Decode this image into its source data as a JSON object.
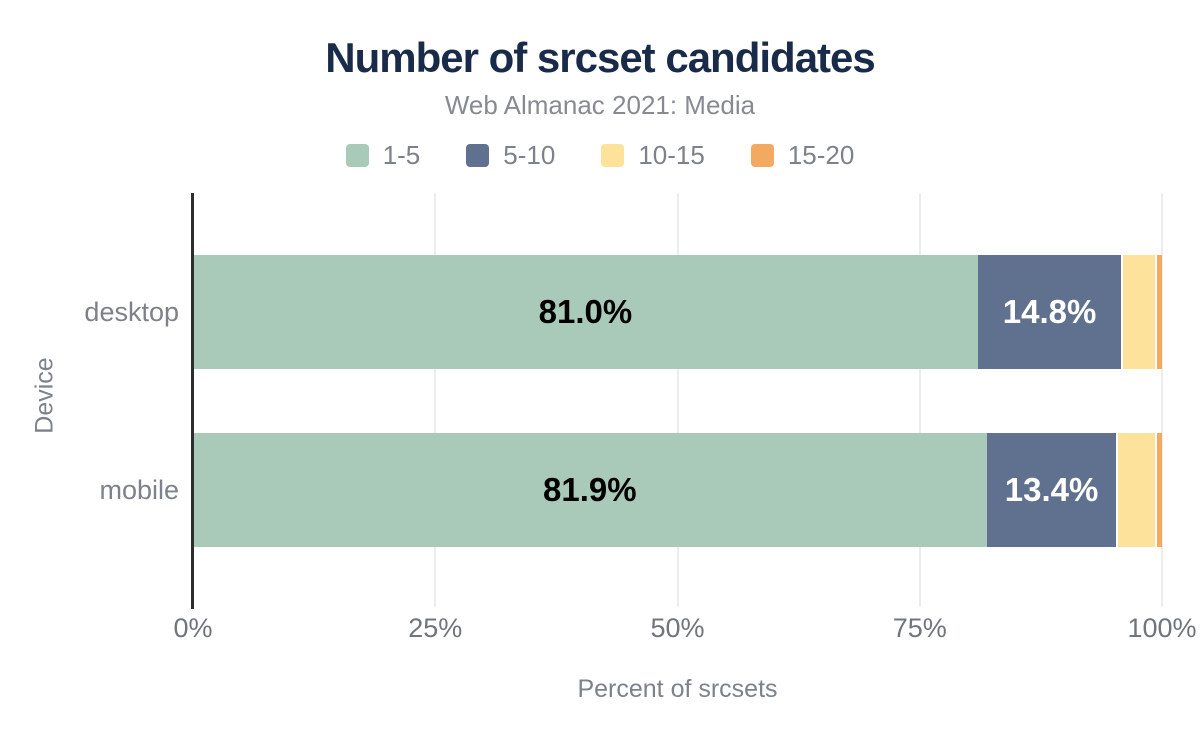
{
  "title": "Number of srcset candidates",
  "subtitle": "Web Almanac 2021: Media",
  "legend": [
    {
      "label": "1-5",
      "color": "#a9cab9"
    },
    {
      "label": "5-10",
      "color": "#60718f"
    },
    {
      "label": "10-15",
      "color": "#fde29b"
    },
    {
      "label": "15-20",
      "color": "#f4a961"
    }
  ],
  "chart_data": {
    "type": "bar",
    "stacked": true,
    "orientation": "horizontal",
    "title": "Number of srcset candidates",
    "subtitle": "Web Almanac 2021: Media",
    "categories": [
      "desktop",
      "mobile"
    ],
    "series": [
      {
        "name": "1-5",
        "color": "#a9cab9",
        "label_color": "#000000",
        "values": [
          81.0,
          81.9
        ],
        "labels": [
          "81.0%",
          "81.9%"
        ]
      },
      {
        "name": "5-10",
        "color": "#60718f",
        "label_color": "#ffffff",
        "values": [
          14.8,
          13.4
        ],
        "labels": [
          "14.8%",
          "13.4%"
        ]
      },
      {
        "name": "10-15",
        "color": "#fde29b",
        "label_color": null,
        "values": [
          3.5,
          4.0
        ],
        "labels": null
      },
      {
        "name": "15-20",
        "color": "#f4a961",
        "label_color": null,
        "values": [
          0.7,
          0.7
        ],
        "labels": null
      }
    ],
    "xlabel": "Percent of srcsets",
    "ylabel": "Device",
    "x_ticks": [
      "0%",
      "25%",
      "50%",
      "75%",
      "100%"
    ],
    "xlim": [
      0,
      100
    ],
    "grid": true,
    "legend_position": "top",
    "colors": {
      "title_text": "#1a2b49",
      "muted_text": "#7d828a",
      "axis_line": "#2d2d2d",
      "gridline": "#ededed",
      "background": "#ffffff"
    }
  }
}
